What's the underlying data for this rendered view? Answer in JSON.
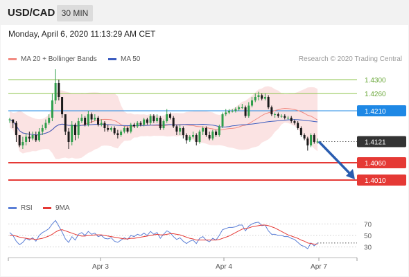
{
  "header": {
    "symbol": "USD/CAD",
    "timeframe": "30 MIN",
    "datetime": "Monday, April 6, 2020 11:13:29 AM CET"
  },
  "legend": {
    "ma20": "MA 20 + Bollinger Bands",
    "ma50": "MA 50",
    "credit": "Research © 2020 Trading Central"
  },
  "rsi_legend": {
    "rsi": "RSI",
    "ma9": "9MA"
  },
  "colors": {
    "up": "#2e9e4a",
    "down": "#1a1a1a",
    "ma20": "#f28b82",
    "ma50": "#3a5bbf",
    "band": "#fadada",
    "resistance": "#8bc34a",
    "pivot": "#1e88e5",
    "support": "#e53935",
    "current_label": "#333333",
    "arrow": "#2a5db0"
  },
  "chart_data": [
    {
      "type": "candlestick",
      "title": "USD/CAD 30 MIN",
      "x_ticks": [
        "Apr 3",
        "Apr 4",
        "Apr 7"
      ],
      "ylim": [
        1.396,
        1.434
      ],
      "levels": [
        {
          "value": 1.43,
          "label": "1.4300",
          "kind": "resistance"
        },
        {
          "value": 1.426,
          "label": "1.4260",
          "kind": "resistance"
        },
        {
          "value": 1.421,
          "label": "1.4210",
          "kind": "pivot"
        },
        {
          "value": 1.4121,
          "label": "1.4121",
          "kind": "current"
        },
        {
          "value": 1.406,
          "label": "1.4060",
          "kind": "support"
        },
        {
          "value": 1.401,
          "label": "1.4010",
          "kind": "support"
        }
      ],
      "forecast_arrow": {
        "from": 1.4121,
        "to": 1.401
      },
      "closes": [
        1.4185,
        1.4175,
        1.414,
        1.411,
        1.412,
        1.4135,
        1.413,
        1.414,
        1.4125,
        1.415,
        1.416,
        1.4175,
        1.419,
        1.424,
        1.429,
        1.425,
        1.42,
        1.415,
        1.412,
        1.417,
        1.414,
        1.418,
        1.419,
        1.417,
        1.42,
        1.4185,
        1.419,
        1.417,
        1.4175,
        1.416,
        1.4155,
        1.416,
        1.4145,
        1.414,
        1.415,
        1.416,
        1.415,
        1.417,
        1.4165,
        1.4175,
        1.417,
        1.4185,
        1.4175,
        1.4195,
        1.418,
        1.419,
        1.416,
        1.418,
        1.42,
        1.419,
        1.4165,
        1.415,
        1.416,
        1.414,
        1.4125,
        1.4135,
        1.414,
        1.412,
        1.415,
        1.416,
        1.414,
        1.413,
        1.415,
        1.414,
        1.4165,
        1.42,
        1.4205,
        1.421,
        1.421,
        1.4215,
        1.422,
        1.422,
        1.4195,
        1.4225,
        1.424,
        1.425,
        1.4255,
        1.4245,
        1.425,
        1.422,
        1.42,
        1.42,
        1.4195,
        1.4195,
        1.419,
        1.419,
        1.418,
        1.4175,
        1.416,
        1.414,
        1.413,
        1.411,
        1.414,
        1.412,
        1.4121
      ],
      "highs": [
        1.419,
        1.4185,
        1.418,
        1.414,
        1.4135,
        1.4145,
        1.415,
        1.415,
        1.415,
        1.416,
        1.417,
        1.4185,
        1.42,
        1.426,
        1.433,
        1.43,
        1.425,
        1.42,
        1.416,
        1.418,
        1.4175,
        1.419,
        1.42,
        1.4195,
        1.421,
        1.4205,
        1.42,
        1.4195,
        1.4185,
        1.418,
        1.417,
        1.4165,
        1.4165,
        1.4155,
        1.4155,
        1.4165,
        1.4165,
        1.4175,
        1.4175,
        1.418,
        1.418,
        1.419,
        1.419,
        1.42,
        1.42,
        1.42,
        1.4195,
        1.4185,
        1.4215,
        1.4205,
        1.4195,
        1.417,
        1.417,
        1.4165,
        1.4145,
        1.414,
        1.415,
        1.4145,
        1.4155,
        1.4165,
        1.4165,
        1.415,
        1.4155,
        1.4155,
        1.417,
        1.4205,
        1.4215,
        1.4215,
        1.4215,
        1.422,
        1.4225,
        1.423,
        1.4225,
        1.4235,
        1.425,
        1.426,
        1.4265,
        1.426,
        1.426,
        1.4255,
        1.4225,
        1.4205,
        1.4205,
        1.42,
        1.42,
        1.4195,
        1.4195,
        1.4185,
        1.418,
        1.4165,
        1.4145,
        1.4135,
        1.4145,
        1.4145,
        1.413
      ],
      "lows": [
        1.4175,
        1.416,
        1.412,
        1.4105,
        1.41,
        1.411,
        1.412,
        1.4125,
        1.412,
        1.412,
        1.414,
        1.4155,
        1.417,
        1.418,
        1.423,
        1.424,
        1.419,
        1.414,
        1.41,
        1.411,
        1.4125,
        1.413,
        1.4175,
        1.4165,
        1.4165,
        1.4175,
        1.418,
        1.4165,
        1.4165,
        1.415,
        1.415,
        1.415,
        1.414,
        1.413,
        1.4135,
        1.4145,
        1.4145,
        1.4145,
        1.416,
        1.416,
        1.4165,
        1.4165,
        1.417,
        1.417,
        1.4175,
        1.4175,
        1.4155,
        1.4155,
        1.4175,
        1.4185,
        1.416,
        1.414,
        1.414,
        1.413,
        1.4115,
        1.412,
        1.413,
        1.411,
        1.4115,
        1.414,
        1.4135,
        1.4125,
        1.4125,
        1.4135,
        1.4135,
        1.416,
        1.4195,
        1.42,
        1.4205,
        1.4205,
        1.421,
        1.4215,
        1.419,
        1.419,
        1.422,
        1.4235,
        1.424,
        1.424,
        1.424,
        1.4215,
        1.4195,
        1.419,
        1.419,
        1.419,
        1.4185,
        1.4185,
        1.4175,
        1.417,
        1.4155,
        1.4135,
        1.4125,
        1.4095,
        1.4105,
        1.4115,
        1.4115
      ]
    },
    {
      "type": "line",
      "title": "RSI",
      "ylim": [
        20,
        80
      ],
      "ticks": [
        70,
        50,
        30
      ],
      "series": [
        {
          "name": "RSI",
          "values": [
            55,
            50,
            40,
            34,
            38,
            45,
            42,
            46,
            40,
            50,
            55,
            58,
            62,
            70,
            76,
            66,
            56,
            44,
            38,
            48,
            42,
            52,
            55,
            50,
            57,
            52,
            54,
            48,
            50,
            45,
            44,
            46,
            40,
            38,
            42,
            46,
            43,
            50,
            48,
            52,
            50,
            54,
            50,
            57,
            52,
            55,
            45,
            52,
            58,
            55,
            48,
            43,
            46,
            40,
            36,
            40,
            42,
            36,
            45,
            48,
            42,
            39,
            45,
            42,
            50,
            60,
            62,
            64,
            64,
            65,
            68,
            68,
            58,
            66,
            70,
            72,
            73,
            67,
            68,
            58,
            52,
            52,
            50,
            50,
            48,
            48,
            45,
            43,
            38,
            33,
            31,
            27,
            37,
            32,
            37
          ]
        },
        {
          "name": "9MA",
          "values": [
            50,
            50,
            49,
            47,
            46,
            45,
            44,
            44,
            43,
            44,
            45,
            47,
            49,
            52,
            56,
            59,
            60,
            58,
            56,
            54,
            52,
            50,
            49,
            49,
            50,
            50,
            51,
            51,
            51,
            50,
            49,
            48,
            47,
            46,
            45,
            44,
            44,
            45,
            45,
            46,
            47,
            48,
            49,
            50,
            51,
            52,
            51,
            51,
            52,
            53,
            53,
            52,
            51,
            49,
            47,
            45,
            44,
            42,
            42,
            42,
            42,
            42,
            42,
            42,
            43,
            45,
            47,
            49,
            52,
            55,
            58,
            61,
            62,
            63,
            65,
            66,
            67,
            68,
            68,
            67,
            65,
            63,
            60,
            57,
            54,
            51,
            49,
            47,
            45,
            42,
            40,
            37,
            36,
            35,
            35
          ]
        }
      ]
    }
  ]
}
